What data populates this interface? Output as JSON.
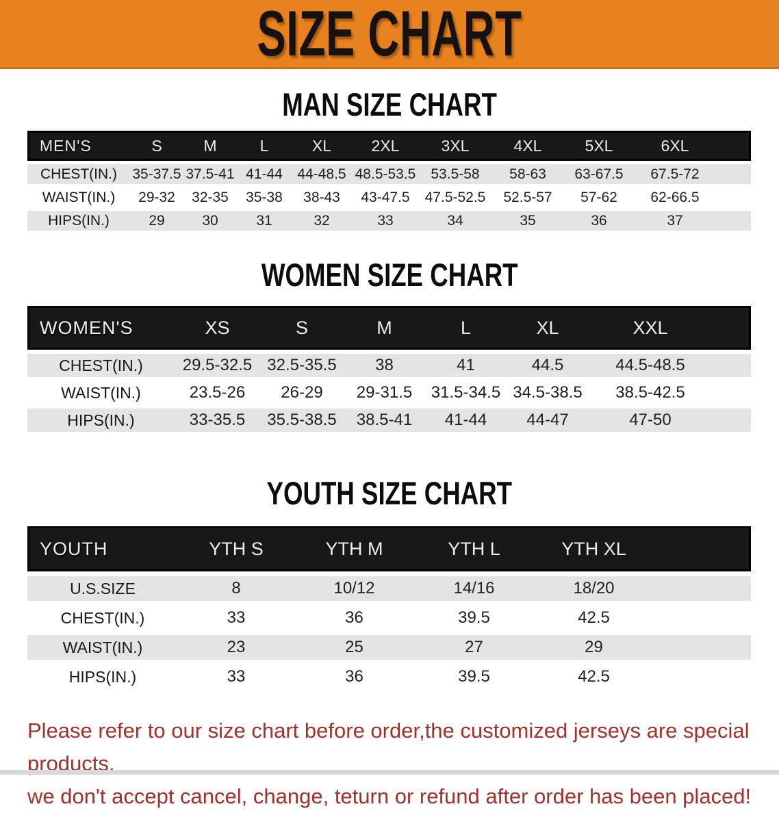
{
  "banner": {
    "title": "SIZE CHART"
  },
  "colors": {
    "banner_bg": "#E8821E",
    "table_header_bg": "#181818",
    "row_stripe": "#e4e4e4",
    "footer_text": "#A5302A"
  },
  "tables": [
    {
      "section_title": "MAN SIZE CHART",
      "corner_label": "MEN'S",
      "size_headers": [
        "S",
        "M",
        "L",
        "XL",
        "2XL",
        "3XL",
        "4XL",
        "5XL",
        "6XL"
      ],
      "rows": [
        {
          "label": "CHEST(IN.)",
          "values": [
            "35-37.5",
            "37.5-41",
            "41-44",
            "44-48.5",
            "48.5-53.5",
            "53.5-58",
            "58-63",
            "63-67.5",
            "67.5-72"
          ]
        },
        {
          "label": "WAIST(IN.)",
          "values": [
            "29-32",
            "32-35",
            "35-38",
            "38-43",
            "43-47.5",
            "47.5-52.5",
            "52.5-57",
            "57-62",
            "62-66.5"
          ]
        },
        {
          "label": "HIPS(IN.)",
          "values": [
            "29",
            "30",
            "31",
            "32",
            "33",
            "34",
            "35",
            "36",
            "37"
          ]
        }
      ]
    },
    {
      "section_title": "WOMEN SIZE CHART",
      "corner_label": "WOMEN'S",
      "size_headers": [
        "XS",
        "S",
        "M",
        "L",
        "XL",
        "XXL"
      ],
      "rows": [
        {
          "label": "CHEST(IN.)",
          "values": [
            "29.5-32.5",
            "32.5-35.5",
            "38",
            "41",
            "44.5",
            "44.5-48.5"
          ]
        },
        {
          "label": "WAIST(IN.)",
          "values": [
            "23.5-26",
            "26-29",
            "29-31.5",
            "31.5-34.5",
            "34.5-38.5",
            "38.5-42.5"
          ]
        },
        {
          "label": "HIPS(IN.)",
          "values": [
            "33-35.5",
            "35.5-38.5",
            "38.5-41",
            "41-44",
            "44-47",
            "47-50"
          ]
        }
      ]
    },
    {
      "section_title": "YOUTH SIZE CHART",
      "corner_label": "YOUTH",
      "size_headers": [
        "YTH S",
        "YTH M",
        "YTH L",
        "YTH XL"
      ],
      "rows": [
        {
          "label": "U.S.SIZE",
          "values": [
            "8",
            "10/12",
            "14/16",
            "18/20"
          ]
        },
        {
          "label": "CHEST(IN.)",
          "values": [
            "33",
            "36",
            "39.5",
            "42.5"
          ]
        },
        {
          "label": "WAIST(IN.)",
          "values": [
            "23",
            "25",
            "27",
            "29"
          ]
        },
        {
          "label": "HIPS(IN.)",
          "values": [
            "33",
            "36",
            "39.5",
            "42.5"
          ]
        }
      ]
    }
  ],
  "footer": {
    "line1": "Please refer to our size chart before order,the customized jerseys are special products,",
    "line2": "we don't accept cancel, change, teturn or refund after order has been placed!"
  }
}
